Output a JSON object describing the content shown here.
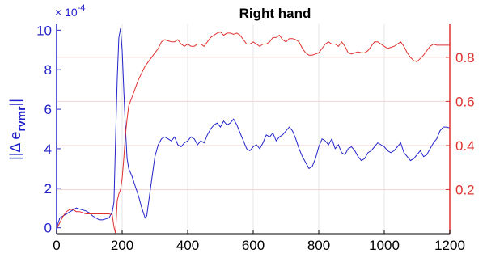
{
  "chart_data": {
    "type": "line",
    "title": "Right hand",
    "ylabel_left": {
      "prefix": "||Δ e",
      "subscript": "rvmr",
      "suffix": "||"
    },
    "left_axis_multiplier": "× 10",
    "left_axis_exponent": "-4",
    "xlim": [
      0,
      1200
    ],
    "ylim_left": [
      -0.3,
      10.3
    ],
    "ylim_right": [
      0.0,
      0.95
    ],
    "x_ticks": [
      0,
      200,
      400,
      600,
      800,
      1000,
      1200
    ],
    "x_tick_labels": [
      "0",
      "200",
      "400",
      "600",
      "800",
      "1000",
      "1200"
    ],
    "y_left_ticks": [
      0,
      2,
      4,
      6,
      8,
      10
    ],
    "y_left_tick_labels": [
      "0",
      "2",
      "4",
      "6",
      "8",
      "10"
    ],
    "y_right_ticks": [
      0.2,
      0.4,
      0.6,
      0.8
    ],
    "y_right_tick_labels": [
      "0.2",
      "0.4",
      "0.6",
      "0.8"
    ],
    "grid": true,
    "colors": {
      "left": "#2222cc",
      "right": "#e03030"
    },
    "series": [
      {
        "axis": "left",
        "color": "#2222cc",
        "x": [
          0,
          10,
          20,
          30,
          40,
          50,
          60,
          70,
          80,
          90,
          100,
          110,
          120,
          130,
          140,
          150,
          160,
          170,
          175,
          180,
          185,
          190,
          195,
          200,
          205,
          210,
          215,
          220,
          230,
          240,
          250,
          260,
          270,
          275,
          280,
          290,
          300,
          310,
          320,
          330,
          340,
          350,
          360,
          370,
          380,
          390,
          400,
          410,
          420,
          430,
          440,
          450,
          460,
          470,
          480,
          490,
          500,
          510,
          520,
          530,
          540,
          550,
          560,
          570,
          580,
          590,
          600,
          610,
          620,
          630,
          640,
          650,
          660,
          670,
          680,
          690,
          700,
          710,
          720,
          730,
          740,
          750,
          760,
          770,
          780,
          790,
          800,
          810,
          820,
          830,
          840,
          850,
          860,
          870,
          880,
          890,
          900,
          910,
          920,
          930,
          940,
          950,
          960,
          970,
          980,
          990,
          1000,
          1010,
          1020,
          1030,
          1040,
          1050,
          1060,
          1070,
          1080,
          1090,
          1100,
          1110,
          1120,
          1130,
          1140,
          1150,
          1160,
          1170,
          1180,
          1190,
          1200
        ],
        "y": [
          0.0,
          0.5,
          0.6,
          0.7,
          0.8,
          0.9,
          1.0,
          0.95,
          0.9,
          0.85,
          0.75,
          0.6,
          0.5,
          0.4,
          0.4,
          0.45,
          0.5,
          0.8,
          1.3,
          4.5,
          7.5,
          9.6,
          10.1,
          9.0,
          7.0,
          5.0,
          3.5,
          3.0,
          2.6,
          2.1,
          1.6,
          1.0,
          0.5,
          0.6,
          1.2,
          2.4,
          3.6,
          4.2,
          4.5,
          4.6,
          4.5,
          4.4,
          4.6,
          4.2,
          4.1,
          4.3,
          4.4,
          4.6,
          4.5,
          4.2,
          4.4,
          4.3,
          4.7,
          5.0,
          5.2,
          5.3,
          5.1,
          5.4,
          5.2,
          5.3,
          5.5,
          5.2,
          4.8,
          4.4,
          4.0,
          3.9,
          4.1,
          4.2,
          4.0,
          4.3,
          4.7,
          4.6,
          4.8,
          4.4,
          4.6,
          4.7,
          4.9,
          5.1,
          4.9,
          4.5,
          4.0,
          3.6,
          3.3,
          3.0,
          3.1,
          3.5,
          4.1,
          4.5,
          4.4,
          4.2,
          4.5,
          4.0,
          4.2,
          3.8,
          3.7,
          4.0,
          4.1,
          3.9,
          3.6,
          3.4,
          3.5,
          3.8,
          3.9,
          4.1,
          4.3,
          4.2,
          4.1,
          3.9,
          3.8,
          3.9,
          4.1,
          4.3,
          3.8,
          3.6,
          3.4,
          3.5,
          3.7,
          3.9,
          3.6,
          3.7,
          4.0,
          4.3,
          4.5,
          4.9,
          5.1,
          5.1,
          5.05
        ]
      },
      {
        "axis": "right",
        "color": "#e03030",
        "x": [
          0,
          10,
          20,
          30,
          40,
          50,
          60,
          70,
          80,
          90,
          100,
          110,
          120,
          130,
          140,
          150,
          160,
          170,
          175,
          180,
          185,
          190,
          195,
          200,
          205,
          210,
          215,
          220,
          230,
          240,
          250,
          260,
          270,
          280,
          290,
          300,
          310,
          320,
          330,
          340,
          350,
          360,
          370,
          380,
          390,
          400,
          410,
          420,
          430,
          440,
          450,
          460,
          470,
          480,
          490,
          500,
          510,
          520,
          530,
          540,
          550,
          560,
          570,
          580,
          590,
          600,
          610,
          620,
          630,
          640,
          650,
          660,
          670,
          680,
          690,
          700,
          710,
          720,
          730,
          740,
          750,
          760,
          770,
          780,
          790,
          800,
          810,
          820,
          830,
          840,
          850,
          860,
          870,
          880,
          890,
          900,
          910,
          920,
          930,
          940,
          950,
          960,
          970,
          980,
          990,
          1000,
          1010,
          1020,
          1030,
          1040,
          1050,
          1060,
          1070,
          1080,
          1090,
          1100,
          1110,
          1120,
          1130,
          1140,
          1150,
          1160,
          1170,
          1180,
          1190,
          1200
        ],
        "y": [
          0.02,
          0.05,
          0.08,
          0.1,
          0.11,
          0.11,
          0.1,
          0.1,
          0.095,
          0.09,
          0.09,
          0.09,
          0.09,
          0.09,
          0.09,
          0.09,
          0.09,
          0.085,
          0.03,
          0.0,
          0.15,
          0.18,
          0.2,
          0.25,
          0.34,
          0.45,
          0.52,
          0.58,
          0.62,
          0.66,
          0.7,
          0.73,
          0.76,
          0.78,
          0.8,
          0.82,
          0.84,
          0.87,
          0.88,
          0.875,
          0.87,
          0.87,
          0.88,
          0.86,
          0.85,
          0.86,
          0.85,
          0.85,
          0.86,
          0.86,
          0.85,
          0.87,
          0.89,
          0.9,
          0.91,
          0.915,
          0.9,
          0.91,
          0.91,
          0.905,
          0.91,
          0.9,
          0.88,
          0.86,
          0.86,
          0.87,
          0.86,
          0.85,
          0.86,
          0.86,
          0.87,
          0.89,
          0.89,
          0.9,
          0.88,
          0.87,
          0.885,
          0.885,
          0.88,
          0.87,
          0.84,
          0.82,
          0.81,
          0.81,
          0.815,
          0.82,
          0.84,
          0.86,
          0.87,
          0.86,
          0.86,
          0.85,
          0.87,
          0.85,
          0.82,
          0.815,
          0.82,
          0.825,
          0.82,
          0.82,
          0.83,
          0.85,
          0.87,
          0.87,
          0.86,
          0.85,
          0.84,
          0.845,
          0.85,
          0.86,
          0.87,
          0.85,
          0.82,
          0.8,
          0.785,
          0.78,
          0.795,
          0.81,
          0.83,
          0.85,
          0.86,
          0.855,
          0.855,
          0.855,
          0.855,
          0.855
        ]
      }
    ]
  }
}
